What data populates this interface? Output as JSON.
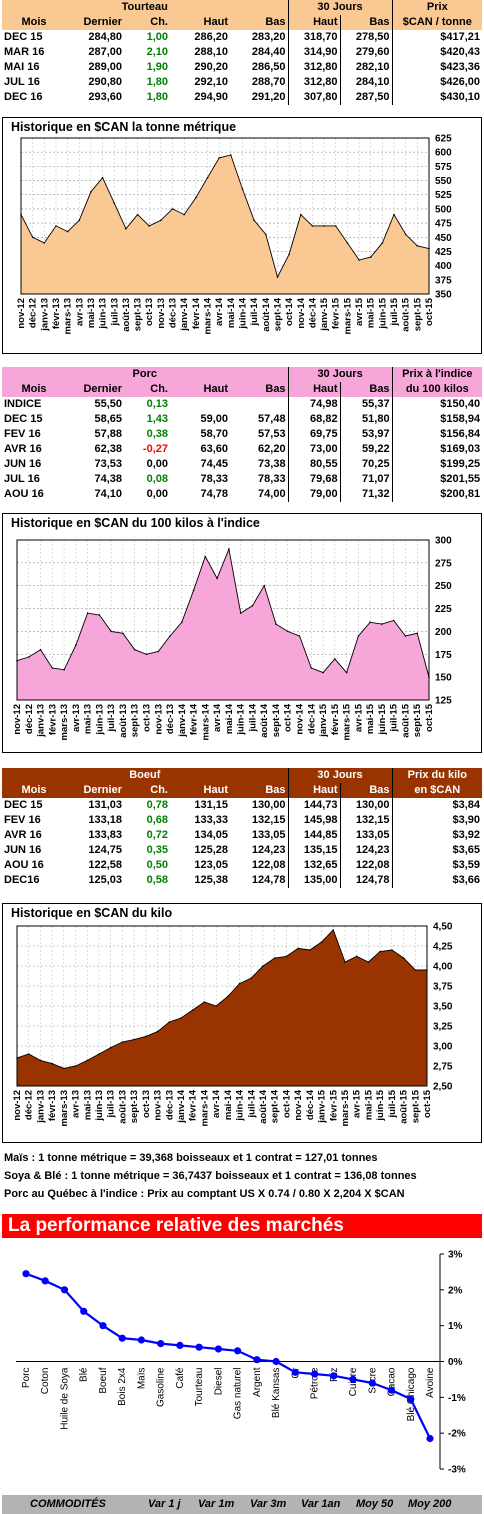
{
  "torteau": {
    "title": "Tourteau",
    "col30": "30 Jours",
    "colPrix": "Prix",
    "headers": [
      "Mois",
      "Dernier",
      "Ch.",
      "Haut",
      "Bas",
      "Haut",
      "Bas",
      "$CAN / tonne"
    ],
    "rows": [
      [
        "DEC 15",
        "284,80",
        "1,00",
        "286,20",
        "283,20",
        "318,70",
        "278,50",
        "$417,21"
      ],
      [
        "MAR 16",
        "287,00",
        "2,10",
        "288,10",
        "284,40",
        "314,90",
        "279,60",
        "$420,43"
      ],
      [
        "MAI 16",
        "289,00",
        "1,90",
        "290,20",
        "286,50",
        "312,80",
        "282,10",
        "$423,36"
      ],
      [
        "JUL 16",
        "290,80",
        "1,80",
        "292,10",
        "288,70",
        "312,80",
        "284,10",
        "$426,00"
      ],
      [
        "DEC 16",
        "293,60",
        "1,80",
        "294,90",
        "291,20",
        "307,80",
        "287,50",
        "$430,10"
      ]
    ],
    "chart_title": "Historique en $CAN la tonne métrique"
  },
  "porc": {
    "title": "Porc",
    "col30": "30 Jours",
    "colPrix": "Prix à l'indice",
    "headers": [
      "Mois",
      "Dernier",
      "Ch.",
      "Haut",
      "Bas",
      "Haut",
      "Bas",
      "du 100 kilos"
    ],
    "rows": [
      [
        "INDICE",
        "55,50",
        "0,13",
        "",
        "",
        "74,98",
        "55,37",
        "$150,40"
      ],
      [
        "DEC 15",
        "58,65",
        "1,43",
        "59,00",
        "57,48",
        "68,82",
        "51,80",
        "$158,94"
      ],
      [
        "FEV 16",
        "57,88",
        "0,38",
        "58,70",
        "57,53",
        "69,75",
        "53,97",
        "$156,84"
      ],
      [
        "AVR 16",
        "62,38",
        "-0,27",
        "63,60",
        "62,20",
        "73,00",
        "59,22",
        "$169,03"
      ],
      [
        "JUN 16",
        "73,53",
        "0,00",
        "74,45",
        "73,38",
        "80,55",
        "70,25",
        "$199,25"
      ],
      [
        "JUL 16",
        "74,38",
        "0,08",
        "78,33",
        "78,33",
        "79,68",
        "71,07",
        "$201,55"
      ],
      [
        "AOU 16",
        "74,10",
        "0,00",
        "74,78",
        "74,00",
        "79,00",
        "71,32",
        "$200,81"
      ]
    ],
    "chart_title": "Historique en $CAN du 100 kilos à l'indice"
  },
  "boeuf": {
    "title": "Boeuf",
    "col30": "30 Jours",
    "colPrix": "Prix du kilo",
    "headers": [
      "Mois",
      "Dernier",
      "Ch.",
      "Haut",
      "Bas",
      "Haut",
      "Bas",
      "en $CAN"
    ],
    "rows": [
      [
        "DEC 15",
        "131,03",
        "0,78",
        "131,15",
        "130,00",
        "144,73",
        "130,00",
        "$3,84"
      ],
      [
        "FEV 16",
        "133,18",
        "0,68",
        "133,33",
        "132,15",
        "145,98",
        "132,15",
        "$3,90"
      ],
      [
        "AVR 16",
        "133,83",
        "0,72",
        "134,05",
        "133,05",
        "144,85",
        "133,05",
        "$3,92"
      ],
      [
        "JUN 16",
        "124,75",
        "0,35",
        "125,28",
        "124,23",
        "135,15",
        "124,23",
        "$3,65"
      ],
      [
        "AOU 16",
        "122,58",
        "0,50",
        "123,05",
        "122,08",
        "132,65",
        "122,08",
        "$3,59"
      ],
      [
        "DEC16",
        "125,03",
        "0,58",
        "125,38",
        "124,78",
        "135,00",
        "124,78",
        "$3,66"
      ]
    ],
    "chart_title": "Historique en $CAN du kilo"
  },
  "notes": [
    "Maïs : 1 tonne métrique = 39,368 boisseaux et 1 contrat = 127,01 tonnes",
    "Soya & Blé : 1 tonne métrique = 36,7437 boisseaux et 1 contrat = 136,08 tonnes",
    "Porc au Québec à l'indice : Prix au comptant US X 0.74 / 0.80 X 2,204 X $CAN"
  ],
  "performance": {
    "title": "La performance relative des marchés",
    "footer": [
      "COMMODITÉS",
      "Var 1 j",
      "Var 1m",
      "Var 3m",
      "Var 1an",
      "Moy 50",
      "Moy 200"
    ]
  },
  "colors": {
    "torteau_fill": "#f9c893",
    "porc_fill": "#f6a6d8",
    "boeuf_fill": "#993300",
    "perf_line": "#0000ff"
  },
  "chart_data": [
    {
      "type": "area",
      "title": "Historique en $CAN la tonne métrique",
      "xlabel": "",
      "ylabel": "",
      "ylim": [
        350,
        625
      ],
      "yticks": [
        350,
        375,
        400,
        425,
        450,
        475,
        500,
        525,
        550,
        575,
        600,
        625
      ],
      "x": [
        "nov-12",
        "déc-12",
        "janv-13",
        "févr-13",
        "mars-13",
        "avr-13",
        "mai-13",
        "juin-13",
        "juil-13",
        "août-13",
        "sept-13",
        "oct-13",
        "nov-13",
        "déc-13",
        "janv-14",
        "févr-14",
        "mars-14",
        "avr-14",
        "mai-14",
        "juin-14",
        "juil-14",
        "août-14",
        "sept-14",
        "oct-14",
        "nov-14",
        "déc-14",
        "janv-15",
        "févr-15",
        "mars-15",
        "avr-15",
        "mai-15",
        "juin-15",
        "juil-15",
        "août-15",
        "sept-15",
        "oct-15"
      ],
      "values": [
        490,
        450,
        440,
        470,
        460,
        480,
        530,
        555,
        510,
        465,
        490,
        470,
        480,
        500,
        490,
        520,
        555,
        590,
        595,
        535,
        480,
        455,
        380,
        420,
        490,
        470,
        470,
        470,
        440,
        410,
        415,
        440,
        490,
        455,
        435,
        430
      ],
      "grid": true
    },
    {
      "type": "area",
      "title": "Historique en $CAN du 100 kilos à l'indice",
      "xlabel": "",
      "ylabel": "",
      "ylim": [
        125,
        300
      ],
      "yticks": [
        125,
        150,
        175,
        200,
        225,
        250,
        275,
        300
      ],
      "x": [
        "nov-12",
        "déc-12",
        "janv-13",
        "févr-13",
        "mars-13",
        "avr-13",
        "mai-13",
        "juin-13",
        "juil-13",
        "août-13",
        "sept-13",
        "oct-13",
        "nov-13",
        "déc-13",
        "janv-14",
        "févr-14",
        "mars-14",
        "avr-14",
        "mai-14",
        "juin-14",
        "juil-14",
        "août-14",
        "sept-14",
        "oct-14",
        "nov-14",
        "déc-14",
        "janv-15",
        "févr-15",
        "mars-15",
        "avr-15",
        "mai-15",
        "juin-15",
        "juil-15",
        "août-15",
        "sept-15",
        "oct-15"
      ],
      "values": [
        168,
        172,
        180,
        160,
        158,
        185,
        220,
        218,
        200,
        198,
        180,
        175,
        178,
        195,
        210,
        245,
        282,
        258,
        290,
        220,
        228,
        250,
        208,
        200,
        195,
        160,
        155,
        170,
        155,
        195,
        210,
        208,
        212,
        195,
        198,
        150
      ],
      "grid": true
    },
    {
      "type": "area",
      "title": "Historique en $CAN du kilo",
      "xlabel": "",
      "ylabel": "",
      "ylim": [
        2.5,
        4.5
      ],
      "yticks": [
        2.5,
        2.75,
        3.0,
        3.25,
        3.5,
        3.75,
        4.0,
        4.25,
        4.5
      ],
      "x": [
        "nov-12",
        "déc-12",
        "janv-13",
        "févr-13",
        "mars-13",
        "avr-13",
        "mai-13",
        "juin-13",
        "juil-13",
        "août-13",
        "sept-13",
        "oct-13",
        "nov-13",
        "déc-13",
        "janv-14",
        "févr-14",
        "mars-14",
        "avr-14",
        "mai-14",
        "juin-14",
        "juil-14",
        "août-14",
        "sept-14",
        "oct-14",
        "nov-14",
        "déc-14",
        "janv-15",
        "févr-15",
        "mars-15",
        "avr-15",
        "mai-15",
        "juin-15",
        "juil-15",
        "août-15",
        "sept-15",
        "oct-15"
      ],
      "values": [
        2.85,
        2.9,
        2.82,
        2.78,
        2.72,
        2.75,
        2.82,
        2.9,
        2.98,
        3.05,
        3.08,
        3.12,
        3.18,
        3.3,
        3.35,
        3.45,
        3.55,
        3.5,
        3.62,
        3.78,
        3.85,
        4.0,
        4.1,
        4.12,
        4.22,
        4.2,
        4.3,
        4.45,
        4.05,
        4.12,
        4.05,
        4.18,
        4.2,
        4.1,
        3.95,
        3.95
      ],
      "grid": true
    },
    {
      "type": "line",
      "title": "La performance relative des marchés",
      "ylim": [
        -3,
        3
      ],
      "yticks": [
        -3,
        -2,
        -1,
        0,
        1,
        2,
        3
      ],
      "ytick_labels": [
        "-3%",
        "-2%",
        "-1%",
        "0%",
        "1%",
        "2%",
        "3%"
      ],
      "categories": [
        "Porc",
        "Coton",
        "Huile de Soya",
        "Blé",
        "Boeuf",
        "Bois 2x4",
        "Maïs",
        "Gasoline",
        "Café",
        "Tourteau",
        "Diesel",
        "Gas naturel",
        "Argent",
        "Blé Kansas",
        "Or",
        "Pétrole",
        "Riz",
        "Cuivre",
        "Sucre",
        "Cacao",
        "Blé Chicago",
        "Avoine"
      ],
      "values": [
        2.45,
        2.25,
        2.0,
        1.4,
        1.0,
        0.65,
        0.6,
        0.5,
        0.45,
        0.4,
        0.35,
        0.3,
        0.05,
        0.0,
        -0.3,
        -0.35,
        -0.4,
        -0.5,
        -0.6,
        -0.8,
        -1.05,
        -2.15
      ],
      "grid": false
    }
  ]
}
